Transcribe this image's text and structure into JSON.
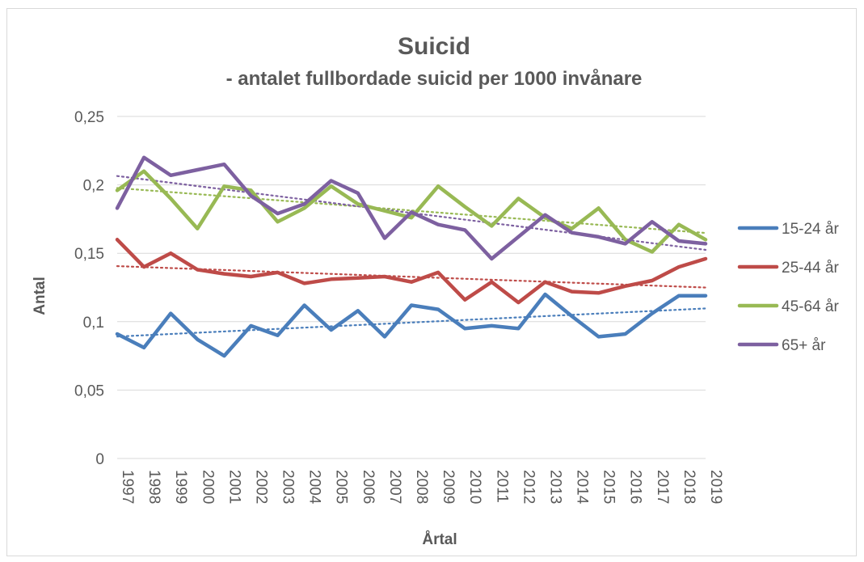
{
  "chart_data": {
    "type": "line",
    "title": "Suicid",
    "subtitle": "- antalet fullbordade suicid per 1000 invånare",
    "xlabel": "Årtal",
    "ylabel": "Antal",
    "ylim": [
      0,
      0.25
    ],
    "yticks": [
      "0",
      "0,05",
      "0,1",
      "0,15",
      "0,2",
      "0,25"
    ],
    "grid": true,
    "legend_position": "right",
    "trendlines": "linear, dotted",
    "categories": [
      "1997",
      "1998",
      "1999",
      "2000",
      "2001",
      "2002",
      "2003",
      "2004",
      "2005",
      "2006",
      "2007",
      "2008",
      "2009",
      "2010",
      "2011",
      "2012",
      "2013",
      "2014",
      "2015",
      "2016",
      "2017",
      "2018",
      "2019"
    ],
    "series": [
      {
        "name": "15-24 år",
        "color": "#4a7ebb",
        "values": [
          0.091,
          0.081,
          0.106,
          0.087,
          0.075,
          0.097,
          0.09,
          0.112,
          0.094,
          0.108,
          0.089,
          0.112,
          0.109,
          0.095,
          0.097,
          0.095,
          0.12,
          0.104,
          0.089,
          0.091,
          0.106,
          0.119,
          0.119
        ]
      },
      {
        "name": "25-44 år",
        "color": "#be4b48",
        "values": [
          0.16,
          0.14,
          0.15,
          0.138,
          0.135,
          0.133,
          0.136,
          0.128,
          0.131,
          0.132,
          0.133,
          0.129,
          0.136,
          0.116,
          0.129,
          0.114,
          0.129,
          0.122,
          0.121,
          0.126,
          0.13,
          0.14,
          0.146
        ]
      },
      {
        "name": "45-64 år",
        "color": "#98b954",
        "values": [
          0.196,
          0.21,
          0.19,
          0.168,
          0.199,
          0.196,
          0.173,
          0.183,
          0.199,
          0.186,
          0.181,
          0.176,
          0.199,
          0.184,
          0.17,
          0.19,
          0.176,
          0.168,
          0.183,
          0.16,
          0.151,
          0.171,
          0.16
        ]
      },
      {
        "name": "65+ år",
        "color": "#7d60a0",
        "values": [
          0.183,
          0.22,
          0.207,
          0.211,
          0.215,
          0.192,
          0.179,
          0.186,
          0.203,
          0.194,
          0.161,
          0.18,
          0.171,
          0.167,
          0.146,
          0.162,
          0.178,
          0.165,
          0.162,
          0.157,
          0.173,
          0.159,
          0.157
        ]
      }
    ]
  }
}
